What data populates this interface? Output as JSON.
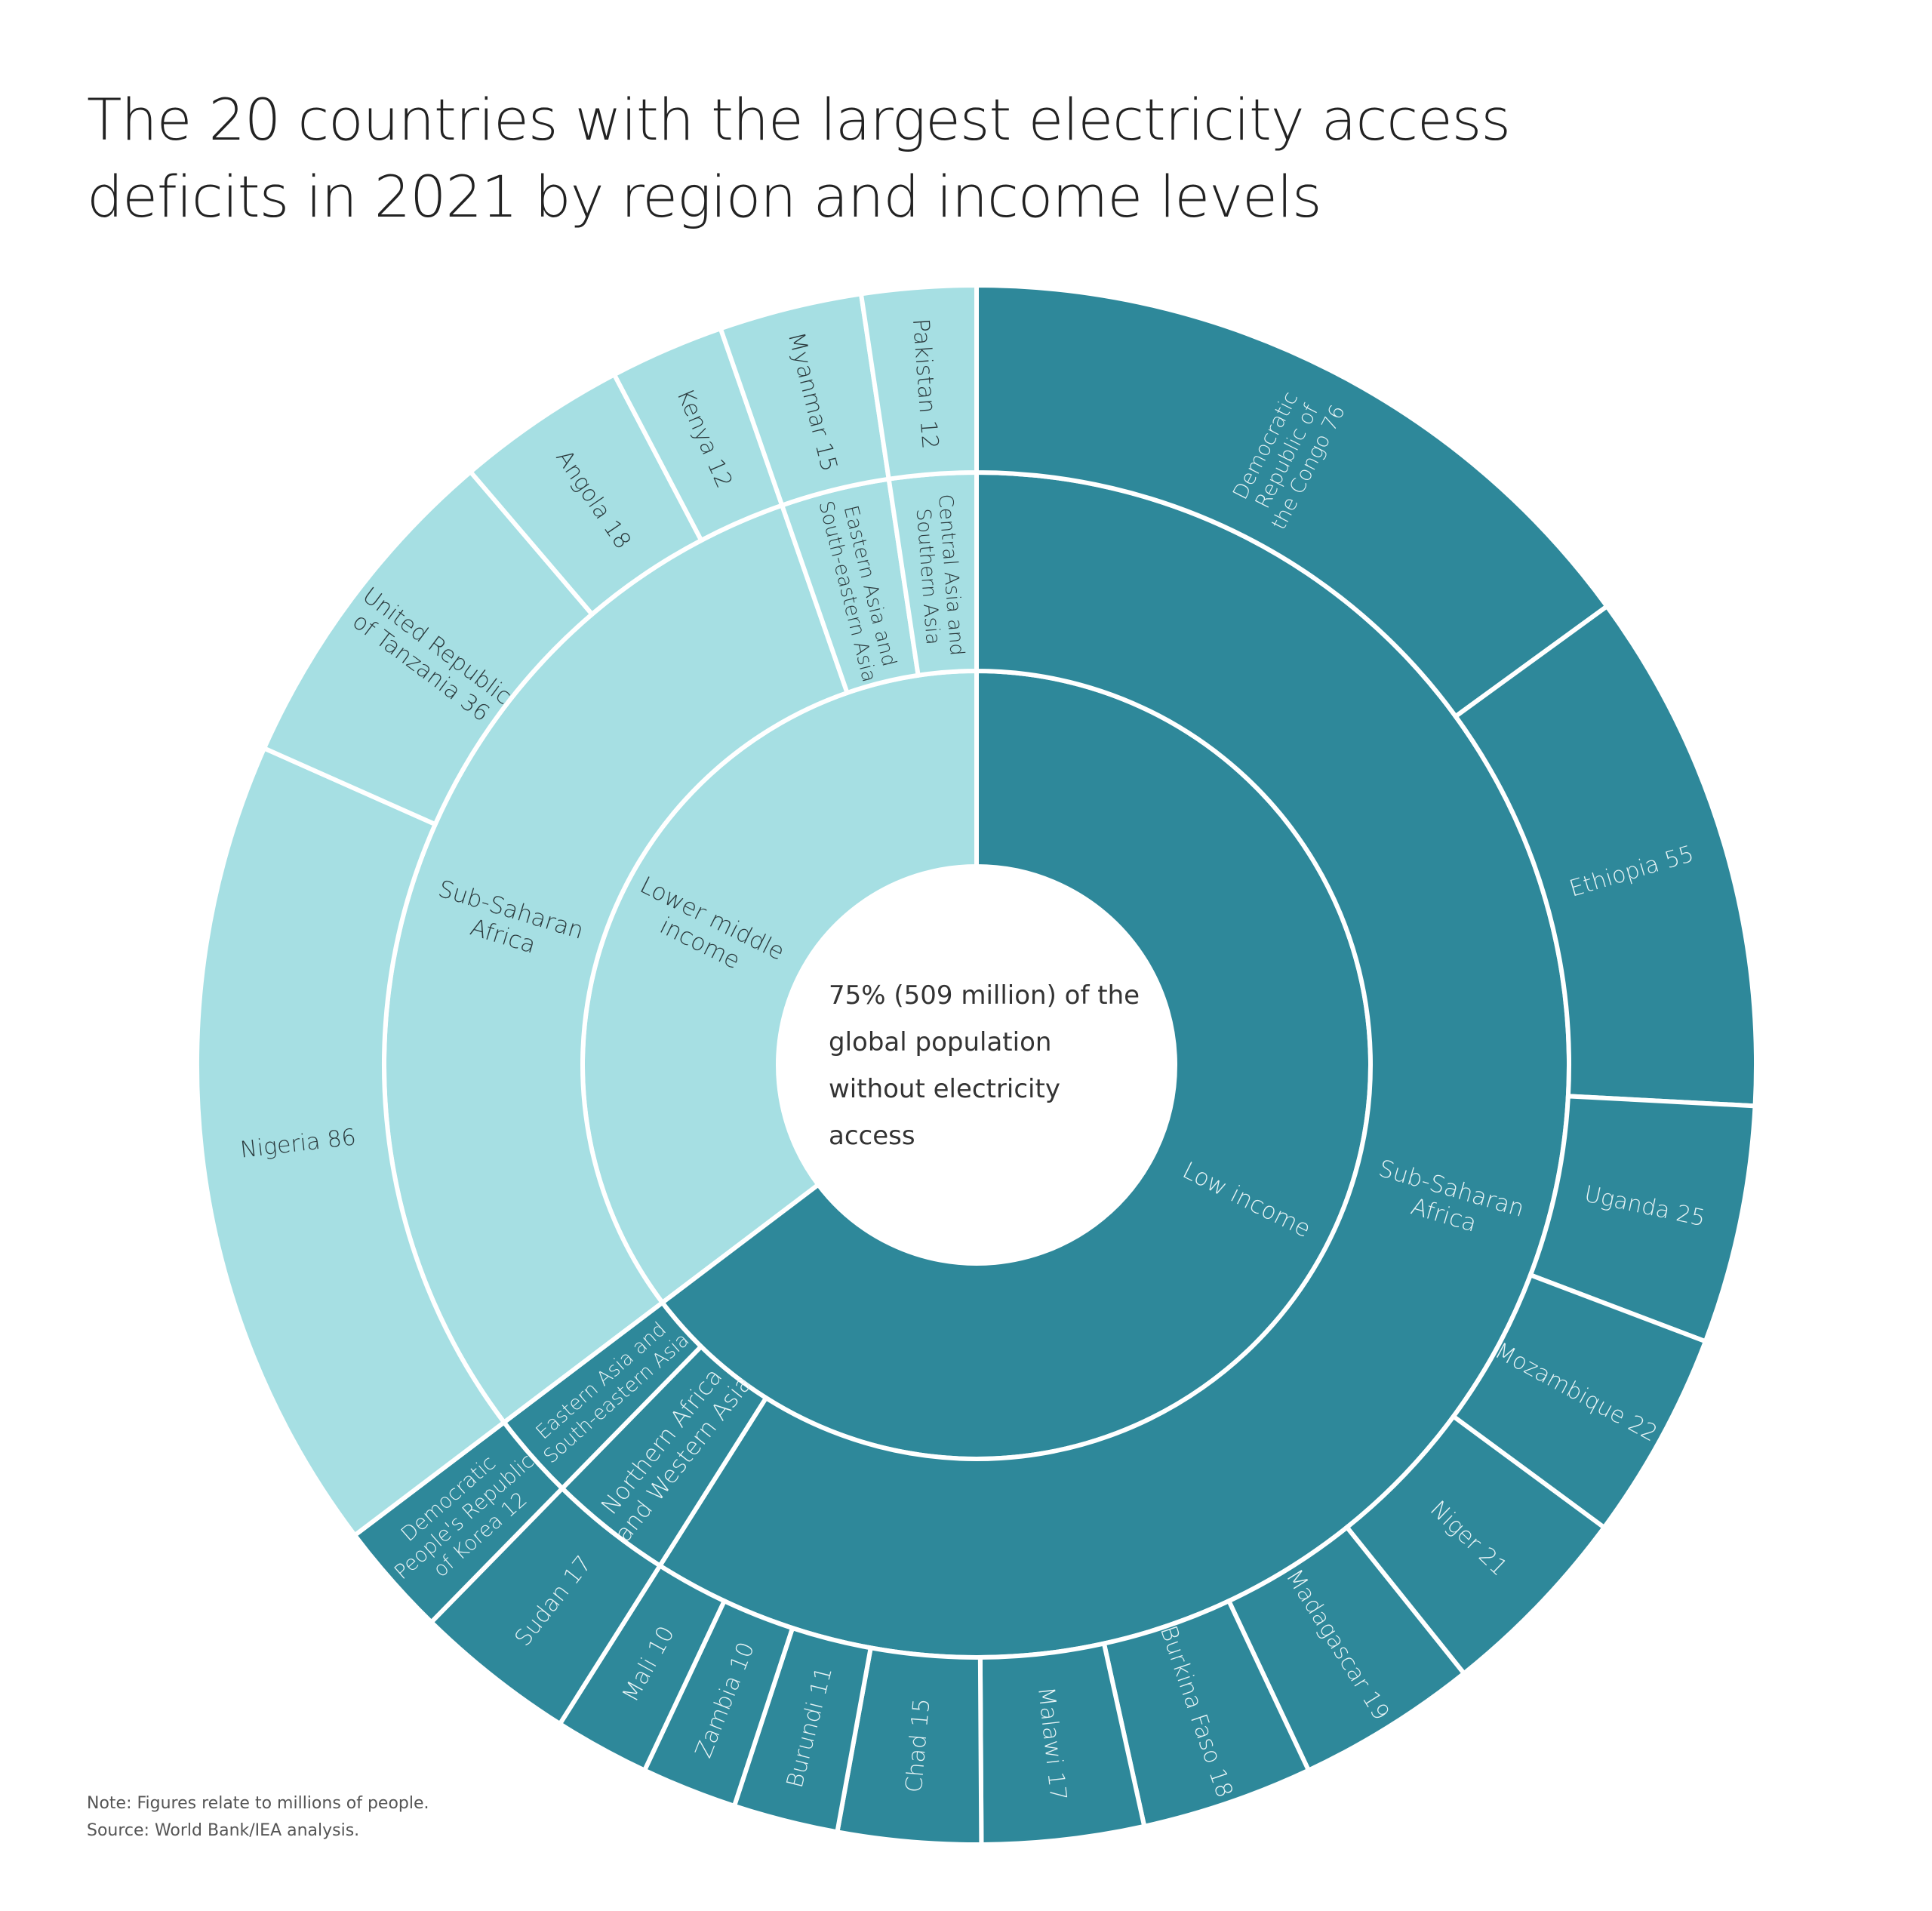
{
  "title_lines": [
    "The 20 countries with the largest electricity access",
    "deficits in 2021 by region and income levels"
  ],
  "notes": {
    "note": "Note: Figures relate to millions of people.",
    "source": "Source: World Bank/IEA analysis."
  },
  "colors": {
    "low_income": "#2e889a",
    "lower_middle_income": "#a6dfe3",
    "separator": "#ffffff",
    "label_on_dark": "#e6f3f5",
    "label_on_light": "#2b3a3d"
  },
  "chart_data": {
    "type": "sunburst",
    "title": "The 20 countries with the largest electricity access deficits in 2021 by region and income levels",
    "units": "millions of people",
    "center_label_lines": [
      "75% (509 million) of the",
      "global population",
      "without electricity",
      "access"
    ],
    "income_levels": [
      {
        "name": "Low income",
        "label_lines": [
          "Low income"
        ],
        "color": "#2e889a",
        "regions": [
          {
            "name": "Sub-Saharan Africa",
            "label_lines": [
              "Sub-Saharan",
              "Africa"
            ],
            "countries": [
              {
                "name": "Democratic Republic of the Congo",
                "value": 76,
                "label_lines": [
                  "Democratic",
                  "Republic of",
                  "the Congo 76"
                ]
              },
              {
                "name": "Ethiopia",
                "value": 55,
                "label_lines": [
                  "Ethiopia 55"
                ]
              },
              {
                "name": "Uganda",
                "value": 25,
                "label_lines": [
                  "Uganda 25"
                ]
              },
              {
                "name": "Mozambique",
                "value": 22,
                "label_lines": [
                  "Mozambique 22"
                ]
              },
              {
                "name": "Niger",
                "value": 21,
                "label_lines": [
                  "Niger 21"
                ]
              },
              {
                "name": "Madagascar",
                "value": 19,
                "label_lines": [
                  "Madagascar 19"
                ]
              },
              {
                "name": "Burkina Faso",
                "value": 18,
                "label_lines": [
                  "Burkina Faso 18"
                ]
              },
              {
                "name": "Malawi",
                "value": 17,
                "label_lines": [
                  "Malawi 17"
                ]
              },
              {
                "name": "Chad",
                "value": 15,
                "label_lines": [
                  "Chad 15"
                ]
              },
              {
                "name": "Burundi",
                "value": 11,
                "label_lines": [
                  "Burundi 11"
                ]
              },
              {
                "name": "Zambia",
                "value": 10,
                "label_lines": [
                  "Zambia 10"
                ]
              },
              {
                "name": "Mali",
                "value": 10,
                "label_lines": [
                  "Mali 10"
                ]
              }
            ]
          },
          {
            "name": "Northern Africa and Western Asia",
            "label_lines": [
              "Northern Africa",
              "and Western Asia"
            ],
            "countries": [
              {
                "name": "Sudan",
                "value": 17,
                "label_lines": [
                  "Sudan 17"
                ]
              }
            ]
          },
          {
            "name": "Eastern Asia and South-eastern Asia",
            "label_lines": [
              "Eastern Asia and",
              "South-eastern Asia"
            ],
            "countries": [
              {
                "name": "Democratic People's Republic of Korea",
                "value": 12,
                "label_lines": [
                  "Democratic",
                  "People's Republic",
                  "of Korea 12"
                ]
              }
            ]
          }
        ]
      },
      {
        "name": "Lower middle income",
        "label_lines": [
          "Lower middle",
          "income"
        ],
        "color": "#a6dfe3",
        "regions": [
          {
            "name": "Sub-Saharan Africa",
            "label_lines": [
              "Sub-Saharan",
              "Africa"
            ],
            "countries": [
              {
                "name": "Nigeria",
                "value": 86,
                "label_lines": [
                  "Nigeria 86"
                ]
              },
              {
                "name": "United Republic of Tanzania",
                "value": 36,
                "label_lines": [
                  "United Republic",
                  "of Tanzania 36"
                ]
              },
              {
                "name": "Angola",
                "value": 18,
                "label_lines": [
                  "Angola 18"
                ]
              },
              {
                "name": "Kenya",
                "value": 12,
                "label_lines": [
                  "Kenya 12"
                ]
              }
            ]
          },
          {
            "name": "Eastern Asia and South-eastern Asia",
            "label_lines": [
              "Eastern Asia and",
              "South-eastern Asia"
            ],
            "countries": [
              {
                "name": "Myanmar",
                "value": 15,
                "label_lines": [
                  "Myanmar 15"
                ]
              }
            ]
          },
          {
            "name": "Central Asia and Southern Asia",
            "label_lines": [
              "Central Asia and",
              "Southern Asia"
            ],
            "countries": [
              {
                "name": "Pakistan",
                "value": 12,
                "label_lines": [
                  "Pakistan 12"
                ]
              }
            ]
          }
        ]
      }
    ]
  }
}
